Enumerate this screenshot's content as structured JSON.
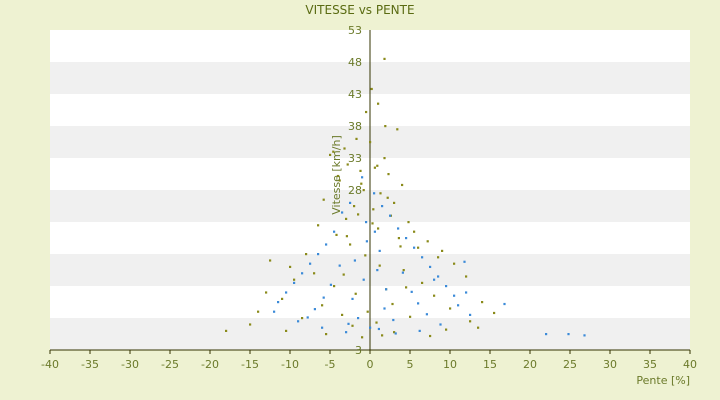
{
  "chart_data": {
    "type": "scatter",
    "title": "VITESSE vs PENTE",
    "xlabel": "Pente [%]",
    "ylabel": "Vitesse [km/h]",
    "xlim": [
      -40,
      40
    ],
    "ylim": [
      3,
      53
    ],
    "x_ticks": [
      -40,
      -35,
      -30,
      -25,
      -20,
      -15,
      -10,
      -5,
      0,
      5,
      10,
      15,
      20,
      25,
      30,
      35,
      40
    ],
    "y_ticks": [
      3,
      8,
      13,
      18,
      23,
      28,
      33,
      38,
      43,
      48,
      53
    ],
    "y_tick_labels": [
      "3",
      "",
      "",
      "",
      "",
      "28",
      "33",
      "38",
      "43",
      "48",
      "53"
    ],
    "grid": "horizontal-bands",
    "colors": {
      "background": "#eef2d2",
      "band_light": "#ffffff",
      "band_dark": "#f0f0f0",
      "axis": "#333300",
      "series_a": "#3b8ad8",
      "series_b": "#8a8a1a"
    },
    "series": [
      {
        "color": "#8a8a1a",
        "points": [
          [
            1.8,
            48.5
          ],
          [
            0.2,
            43.8
          ],
          [
            1.0,
            41.5
          ],
          [
            -0.5,
            40.2
          ],
          [
            1.9,
            38.0
          ],
          [
            3.4,
            37.5
          ],
          [
            -1.7,
            36.0
          ],
          [
            0.0,
            35.5
          ],
          [
            -3.2,
            34.5
          ],
          [
            -4.6,
            34.0
          ],
          [
            -5.0,
            33.5
          ],
          [
            1.8,
            33.0
          ],
          [
            -2.8,
            32.0
          ],
          [
            0.6,
            31.5
          ],
          [
            -1.2,
            31.0
          ],
          [
            2.3,
            30.5
          ],
          [
            -3.8,
            29.5
          ],
          [
            4.0,
            28.8
          ],
          [
            -0.8,
            28.0
          ],
          [
            1.3,
            27.5
          ],
          [
            -5.8,
            26.5
          ],
          [
            3.0,
            26.0
          ],
          [
            -2.0,
            25.5
          ],
          [
            0.4,
            25.0
          ],
          [
            -1.5,
            24.2
          ],
          [
            2.6,
            24.0
          ],
          [
            -3.0,
            23.5
          ],
          [
            4.8,
            23.0
          ],
          [
            -6.5,
            22.5
          ],
          [
            1.0,
            22.0
          ],
          [
            5.5,
            21.5
          ],
          [
            -4.2,
            21.0
          ],
          [
            3.6,
            20.5
          ],
          [
            7.2,
            20.0
          ],
          [
            -2.5,
            19.5
          ],
          [
            6.0,
            19.0
          ],
          [
            9.0,
            18.5
          ],
          [
            -8.0,
            18.0
          ],
          [
            8.5,
            17.5
          ],
          [
            -12.5,
            17.0
          ],
          [
            10.5,
            16.5
          ],
          [
            -10.0,
            16.0
          ],
          [
            4.2,
            15.5
          ],
          [
            -7.0,
            15.0
          ],
          [
            12.0,
            14.5
          ],
          [
            -9.5,
            14.0
          ],
          [
            6.5,
            13.5
          ],
          [
            -4.5,
            13.0
          ],
          [
            2.0,
            12.5
          ],
          [
            -13.0,
            12.0
          ],
          [
            8.0,
            11.5
          ],
          [
            -11.0,
            11.0
          ],
          [
            14.0,
            10.5
          ],
          [
            -6.0,
            10.0
          ],
          [
            10.0,
            9.5
          ],
          [
            -14.0,
            9.0
          ],
          [
            15.5,
            8.8
          ],
          [
            -3.5,
            8.5
          ],
          [
            5.0,
            8.2
          ],
          [
            -8.5,
            8.0
          ],
          [
            12.5,
            7.5
          ],
          [
            -15.0,
            7.0
          ],
          [
            13.5,
            6.5
          ],
          [
            -10.5,
            6.0
          ],
          [
            3.0,
            5.8
          ],
          [
            -18.0,
            6.0
          ],
          [
            -5.5,
            5.5
          ],
          [
            7.5,
            5.2
          ],
          [
            -1.0,
            5.0
          ],
          [
            1.5,
            5.3
          ],
          [
            9.5,
            6.2
          ],
          [
            -2.2,
            6.8
          ],
          [
            0.8,
            7.3
          ],
          [
            -0.3,
            9.0
          ],
          [
            2.8,
            10.2
          ],
          [
            -1.8,
            11.8
          ],
          [
            4.5,
            12.8
          ],
          [
            -3.3,
            14.8
          ],
          [
            1.2,
            16.2
          ],
          [
            -0.6,
            17.8
          ],
          [
            3.8,
            19.2
          ],
          [
            -2.9,
            20.8
          ],
          [
            0.3,
            22.8
          ],
          [
            2.2,
            26.8
          ],
          [
            -1.1,
            29.0
          ],
          [
            -4.0,
            30.2
          ],
          [
            0.9,
            31.8
          ]
        ]
      },
      {
        "color": "#3b8ad8",
        "points": [
          [
            22.0,
            5.5
          ],
          [
            24.8,
            5.5
          ],
          [
            26.8,
            5.3
          ],
          [
            16.8,
            10.2
          ],
          [
            11.8,
            16.8
          ],
          [
            8.5,
            14.5
          ],
          [
            12.0,
            12.0
          ],
          [
            -1.0,
            30.0
          ],
          [
            0.5,
            27.5
          ],
          [
            -2.5,
            26.0
          ],
          [
            1.5,
            25.5
          ],
          [
            -3.5,
            24.5
          ],
          [
            2.5,
            24.0
          ],
          [
            -0.5,
            23.0
          ],
          [
            3.5,
            22.0
          ],
          [
            -4.5,
            21.5
          ],
          [
            4.5,
            20.5
          ],
          [
            -5.5,
            19.5
          ],
          [
            5.5,
            19.0
          ],
          [
            -6.5,
            18.0
          ],
          [
            6.5,
            17.5
          ],
          [
            -7.5,
            16.5
          ],
          [
            7.5,
            16.0
          ],
          [
            -8.5,
            15.0
          ],
          [
            8.0,
            14.0
          ],
          [
            -9.5,
            13.5
          ],
          [
            9.5,
            13.0
          ],
          [
            -10.5,
            12.0
          ],
          [
            10.5,
            11.5
          ],
          [
            -11.5,
            10.5
          ],
          [
            11.0,
            10.0
          ],
          [
            -12.0,
            9.0
          ],
          [
            12.5,
            8.5
          ],
          [
            -9.0,
            7.5
          ],
          [
            8.8,
            7.0
          ],
          [
            -6.0,
            6.5
          ],
          [
            6.2,
            6.0
          ],
          [
            -3.0,
            5.8
          ],
          [
            3.2,
            5.6
          ],
          [
            0.0,
            6.5
          ],
          [
            -1.5,
            8.0
          ],
          [
            1.8,
            9.5
          ],
          [
            -2.2,
            11.0
          ],
          [
            2.0,
            12.5
          ],
          [
            -0.8,
            14.0
          ],
          [
            0.9,
            15.5
          ],
          [
            -1.9,
            17.0
          ],
          [
            1.2,
            18.5
          ],
          [
            -0.4,
            20.0
          ],
          [
            0.6,
            21.5
          ],
          [
            -3.8,
            16.2
          ],
          [
            4.1,
            15.1
          ],
          [
            -4.9,
            13.2
          ],
          [
            5.2,
            12.1
          ],
          [
            -5.8,
            11.2
          ],
          [
            6.0,
            10.3
          ],
          [
            -6.9,
            9.4
          ],
          [
            7.1,
            8.6
          ],
          [
            -7.8,
            8.1
          ],
          [
            2.9,
            7.7
          ],
          [
            -2.7,
            7.1
          ],
          [
            1.1,
            6.3
          ]
        ]
      }
    ]
  }
}
